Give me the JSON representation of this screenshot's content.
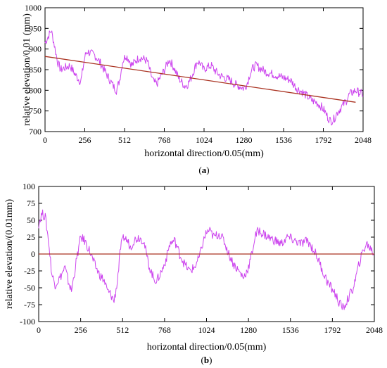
{
  "chart_data": [
    {
      "id": "a",
      "type": "line",
      "caption": "(a)",
      "caption_letter": "a",
      "xlabel": "horizontal direction/0.05(mm)",
      "ylabel": "relative elevation/0.01 (mm)",
      "xlim": [
        0,
        2048
      ],
      "ylim": [
        700,
        1000
      ],
      "xticks": [
        0,
        256,
        512,
        768,
        1024,
        1280,
        1536,
        1792,
        2048
      ],
      "yticks": [
        700,
        750,
        800,
        850,
        900,
        950,
        1000
      ],
      "grid": false,
      "series": [
        {
          "style": "noisy-line",
          "color": "#cc44ee",
          "x": [
            0,
            20,
            40,
            60,
            80,
            100,
            130,
            160,
            200,
            230,
            256,
            270,
            290,
            320,
            350,
            380,
            410,
            440,
            460,
            480,
            500,
            520,
            540,
            560,
            580,
            610,
            640,
            660,
            680,
            700,
            720,
            740,
            770,
            800,
            830,
            860,
            880,
            900,
            920,
            940,
            960,
            980,
            1000,
            1020,
            1040,
            1070,
            1100,
            1130,
            1160,
            1190,
            1220,
            1250,
            1280,
            1300,
            1320,
            1340,
            1360,
            1380,
            1420,
            1460,
            1500,
            1540,
            1580,
            1620,
            1660,
            1690,
            1720,
            1750,
            1780,
            1800,
            1820,
            1840,
            1860,
            1880,
            1900,
            1920,
            1940,
            1960,
            1980,
            2000,
            2020,
            2048
          ],
          "y": [
            915,
            930,
            945,
            910,
            870,
            850,
            855,
            860,
            835,
            820,
            880,
            895,
            890,
            885,
            870,
            850,
            830,
            810,
            800,
            825,
            870,
            885,
            875,
            860,
            870,
            880,
            875,
            870,
            840,
            820,
            815,
            830,
            850,
            875,
            855,
            830,
            820,
            810,
            815,
            830,
            850,
            870,
            865,
            850,
            855,
            860,
            845,
            835,
            830,
            825,
            815,
            810,
            805,
            815,
            840,
            855,
            860,
            855,
            845,
            840,
            835,
            830,
            825,
            805,
            795,
            785,
            775,
            770,
            760,
            750,
            735,
            725,
            730,
            745,
            755,
            765,
            775,
            790,
            795,
            800,
            795,
            790
          ]
        },
        {
          "style": "trend-line",
          "color": "#aa3322",
          "x": [
            0,
            2000
          ],
          "y": [
            882,
            771
          ]
        }
      ]
    },
    {
      "id": "b",
      "type": "line",
      "caption": "(b)",
      "caption_letter": "b",
      "xlabel": "horizontal direction/0.05(mm)",
      "ylabel": "relative elevation/(0.01mm)",
      "xlim": [
        0,
        2048
      ],
      "ylim": [
        -100,
        100
      ],
      "xticks": [
        0,
        256,
        512,
        768,
        1024,
        1280,
        1536,
        1792,
        2048
      ],
      "yticks": [
        -100,
        -75,
        -50,
        -25,
        0,
        25,
        50,
        75,
        100
      ],
      "grid": false,
      "series": [
        {
          "style": "noisy-line",
          "color": "#cc44ee",
          "x": [
            0,
            20,
            40,
            60,
            80,
            100,
            130,
            160,
            180,
            200,
            230,
            256,
            280,
            310,
            340,
            370,
            400,
            420,
            440,
            460,
            480,
            500,
            520,
            540,
            560,
            580,
            610,
            640,
            670,
            700,
            720,
            740,
            760,
            780,
            800,
            830,
            860,
            890,
            920,
            950,
            980,
            1000,
            1020,
            1040,
            1070,
            1100,
            1130,
            1160,
            1190,
            1220,
            1250,
            1280,
            1300,
            1320,
            1340,
            1370,
            1400,
            1440,
            1480,
            1520,
            1560,
            1600,
            1640,
            1680,
            1710,
            1740,
            1770,
            1800,
            1820,
            1840,
            1860,
            1880,
            1900,
            1920,
            1940,
            1960,
            1980,
            2000,
            2020,
            2048
          ],
          "y": [
            45,
            60,
            55,
            20,
            -30,
            -45,
            -35,
            -20,
            -40,
            -55,
            -10,
            25,
            20,
            5,
            -15,
            -30,
            -40,
            -55,
            -60,
            -70,
            -40,
            10,
            25,
            20,
            10,
            20,
            25,
            20,
            -15,
            -35,
            -40,
            -30,
            -20,
            -5,
            15,
            20,
            0,
            -15,
            -25,
            -20,
            -5,
            15,
            30,
            35,
            25,
            30,
            20,
            0,
            -15,
            -25,
            -35,
            -20,
            0,
            25,
            35,
            30,
            25,
            20,
            15,
            25,
            20,
            15,
            20,
            5,
            -10,
            -30,
            -45,
            -55,
            -65,
            -75,
            -80,
            -70,
            -60,
            -50,
            -30,
            -10,
            5,
            15,
            10,
            0
          ]
        },
        {
          "style": "trend-line",
          "color": "#aa3322",
          "x": [
            0,
            2048
          ],
          "y": [
            0,
            0
          ]
        }
      ]
    }
  ]
}
